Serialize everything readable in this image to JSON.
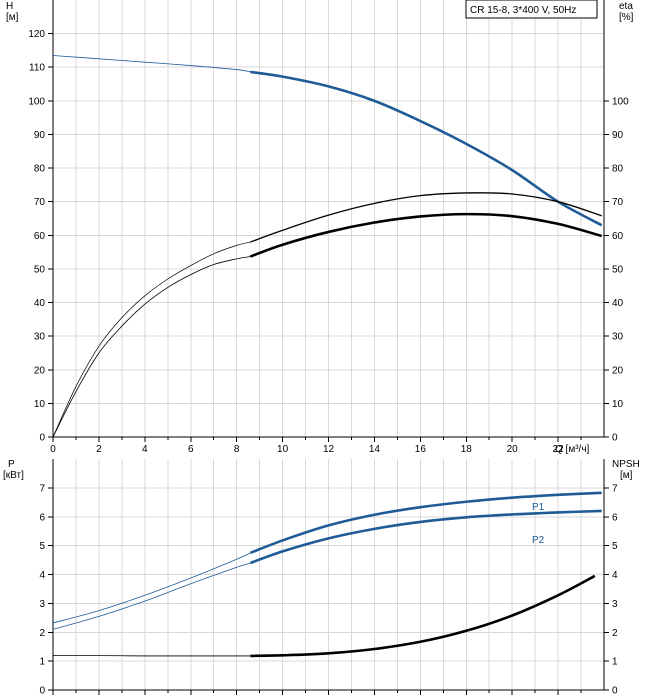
{
  "pump_label": "CR 15-8, 3*400 V, 50Hz",
  "chart_data": [
    {
      "type": "line",
      "axes": {
        "x": {
          "label": "Q [м³/ч]",
          "range": [
            0,
            24
          ],
          "ticks": [
            0,
            2,
            4,
            6,
            8,
            10,
            12,
            14,
            16,
            18,
            20,
            22
          ]
        },
        "y_left": {
          "label_line1": "H",
          "label_line2": "[м]",
          "range": [
            0,
            130
          ],
          "ticks": [
            0,
            10,
            20,
            30,
            40,
            50,
            60,
            70,
            80,
            90,
            100,
            110,
            120
          ]
        },
        "y_right": {
          "label_line1": "eta",
          "label_line2": "[%]",
          "range": [
            0,
            130
          ],
          "ticks": [
            0,
            10,
            20,
            30,
            40,
            50,
            60,
            70,
            80,
            90,
            100
          ]
        }
      },
      "grid": true,
      "series": [
        {
          "key": "H",
          "axis": "left",
          "color": "#1f5b97",
          "x": [
            0,
            2,
            4,
            6,
            8,
            8.6,
            10,
            12,
            14,
            16,
            18,
            20,
            22,
            23.9
          ],
          "y": [
            113.5,
            112.5,
            111.5,
            110.5,
            109.3,
            108.6,
            107.2,
            104.3,
            100.0,
            94.0,
            87.2,
            79.4,
            70.0,
            63.0
          ],
          "operating_start": 8.6
        },
        {
          "key": "eta_thin",
          "axis": "right",
          "color": "#000000",
          "x": [
            0,
            1,
            2,
            3,
            4,
            5,
            6,
            7,
            8,
            8.6,
            10,
            12,
            14,
            16,
            18,
            20,
            22,
            23.9
          ],
          "y": [
            0,
            15,
            27,
            35.5,
            42,
            47,
            51,
            54.5,
            57,
            58,
            61.5,
            66,
            69.5,
            71.8,
            72.6,
            72.3,
            70.0,
            65.8
          ],
          "operating_start": 8.6
        },
        {
          "key": "eta_thick",
          "axis": "right",
          "color": "#000000",
          "x": [
            0,
            1,
            2,
            3,
            4,
            5,
            6,
            7,
            8,
            8.6,
            10,
            12,
            14,
            16,
            18,
            20,
            22,
            23.9
          ],
          "y": [
            0,
            13.5,
            25,
            33,
            39.5,
            44.5,
            48.3,
            51.3,
            53,
            53.7,
            57.2,
            61,
            63.8,
            65.6,
            66.3,
            65.7,
            63.4,
            59.8
          ],
          "operating_start": 8.6
        }
      ]
    },
    {
      "type": "line",
      "axes": {
        "x": {
          "range": [
            0,
            24
          ]
        },
        "y_left": {
          "label_line1": "P",
          "label_line2": "[кВт]",
          "range": [
            0,
            8
          ],
          "ticks": [
            0,
            1,
            2,
            3,
            4,
            5,
            6,
            7
          ]
        },
        "y_right": {
          "label_line1": "NPSH",
          "label_line2": "[м]",
          "range": [
            0,
            8
          ],
          "ticks": [
            0,
            1,
            2,
            3,
            4,
            5,
            6,
            7
          ]
        }
      },
      "grid": true,
      "series": [
        {
          "name": "P1",
          "axis": "left",
          "color": "#1f5b97",
          "x": [
            0,
            2,
            4,
            6,
            8,
            8.6,
            10,
            12,
            14,
            16,
            18,
            20,
            22,
            23.9
          ],
          "y": [
            2.32,
            2.75,
            3.28,
            3.88,
            4.53,
            4.75,
            5.18,
            5.7,
            6.07,
            6.33,
            6.52,
            6.66,
            6.76,
            6.83
          ],
          "operating_start": 8.6
        },
        {
          "name": "P2",
          "axis": "left",
          "color": "#1f5b97",
          "x": [
            0,
            2,
            4,
            6,
            8,
            8.6,
            10,
            12,
            14,
            16,
            18,
            20,
            22,
            23.9
          ],
          "y": [
            2.1,
            2.55,
            3.08,
            3.68,
            4.25,
            4.4,
            4.8,
            5.25,
            5.58,
            5.82,
            5.98,
            6.08,
            6.15,
            6.2
          ],
          "operating_start": 8.6
        },
        {
          "key": "NPSH",
          "axis": "right",
          "color": "#000000",
          "x": [
            0,
            2,
            4,
            6,
            8,
            8.6,
            10,
            12,
            14,
            16,
            18,
            20,
            22,
            23.6
          ],
          "y": [
            1.19,
            1.19,
            1.18,
            1.18,
            1.18,
            1.18,
            1.2,
            1.27,
            1.42,
            1.67,
            2.05,
            2.58,
            3.28,
            3.95
          ],
          "operating_start": 8.6
        }
      ]
    }
  ]
}
